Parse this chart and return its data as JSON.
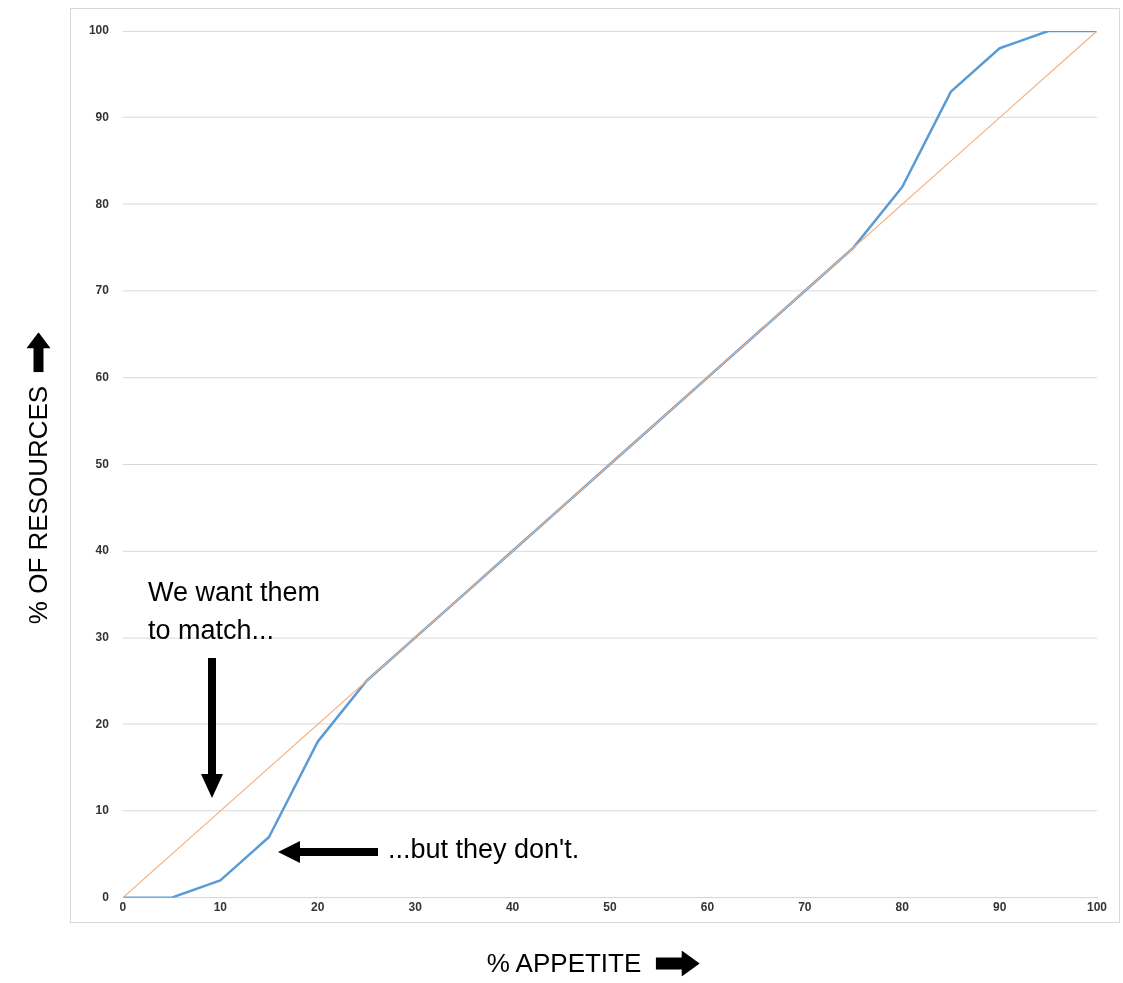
{
  "chart_data": {
    "type": "line",
    "xlabel": "% APPETITE",
    "ylabel": "% OF RESOURCES",
    "x": [
      0,
      5,
      10,
      15,
      20,
      25,
      30,
      35,
      40,
      45,
      50,
      55,
      60,
      65,
      70,
      75,
      80,
      85,
      90,
      95,
      100
    ],
    "series": [
      {
        "color": "#f4b183",
        "x": [
          0,
          100
        ],
        "values": [
          0,
          100
        ]
      },
      {
        "color": "#5b9bd5",
        "values": [
          0,
          0,
          2,
          7,
          18,
          25,
          30,
          35,
          40,
          45,
          50,
          55,
          60,
          65,
          70,
          75,
          82,
          93,
          98,
          100,
          100
        ]
      }
    ],
    "xlim": [
      0,
      100
    ],
    "xticks": [
      0,
      10,
      20,
      30,
      40,
      50,
      60,
      70,
      80,
      90,
      100
    ],
    "ylim": [
      0,
      100
    ],
    "yticks": [
      0,
      10,
      20,
      30,
      40,
      50,
      60,
      70,
      80,
      90,
      100
    ],
    "grid": "y",
    "legend": false,
    "marker": "none",
    "line_style": "solid",
    "annotations": [
      "We want them to match...",
      "...but they don't."
    ]
  }
}
